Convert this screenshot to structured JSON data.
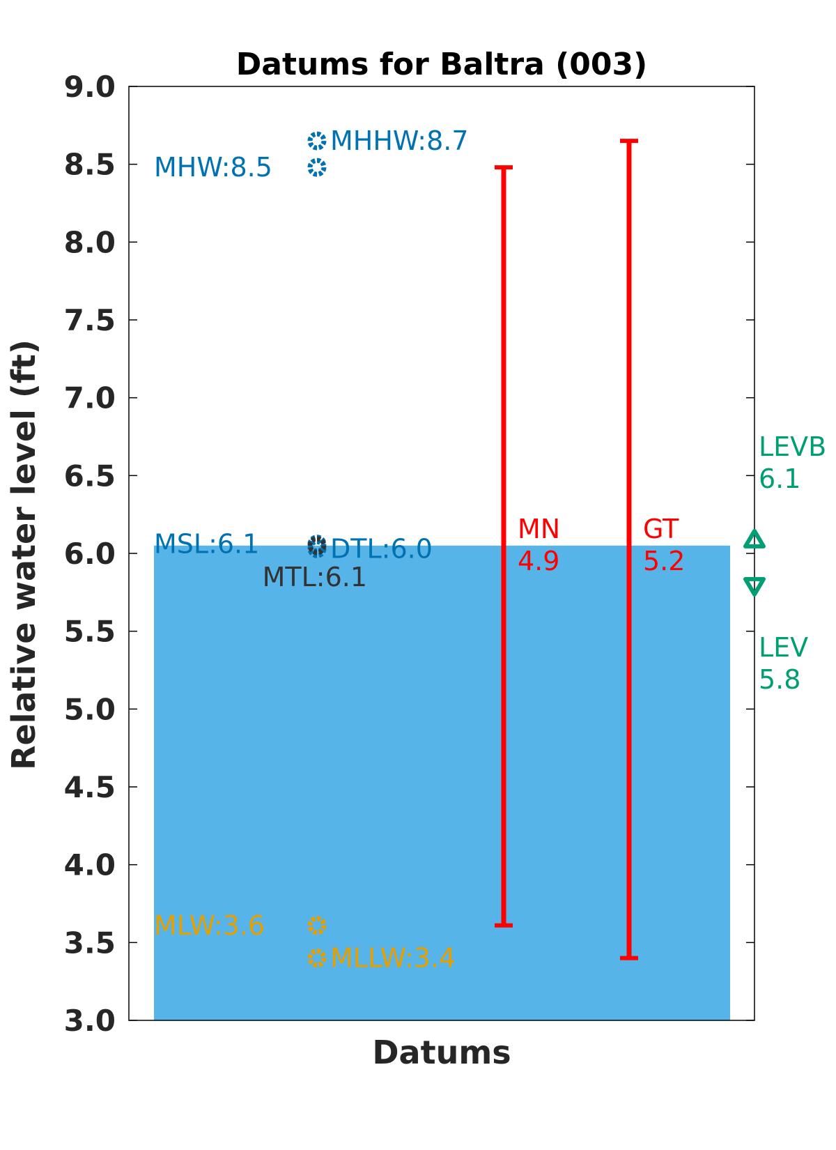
{
  "chart_data": {
    "type": "scatter",
    "title": "Datums for Baltra (003)",
    "xlabel": "Datums",
    "ylabel": "Relative water level (ft)",
    "ylim": [
      3.0,
      9.0
    ],
    "yticks": [
      "3.0",
      "3.5",
      "4.0",
      "4.5",
      "5.0",
      "5.5",
      "6.0",
      "6.5",
      "7.0",
      "7.5",
      "8.0",
      "8.5",
      "9.0"
    ],
    "background_bar": {
      "value": 6.05,
      "color": "#56b4e9"
    },
    "datums": [
      {
        "name": "MHHW",
        "value": 8.65,
        "text": "MHHW:8.7",
        "color": "#0072b2",
        "label_side": "right"
      },
      {
        "name": "MHW",
        "value": 8.48,
        "text": "MHW:8.5",
        "color": "#0072b2",
        "label_side": "left"
      },
      {
        "name": "MSL",
        "value": 6.06,
        "text": "MSL:6.1",
        "color": "#0072b2",
        "label_side": "left"
      },
      {
        "name": "DTL",
        "value": 6.03,
        "text": "DTL:6.0",
        "color": "#0072b2",
        "label_side": "right"
      },
      {
        "name": "MTL",
        "value": 6.05,
        "text": "MTL:6.1",
        "color": "#333333",
        "label_side": "below-left"
      },
      {
        "name": "MLW",
        "value": 3.61,
        "text": "MLW:3.6",
        "color": "#e69f00",
        "label_side": "left"
      },
      {
        "name": "MLLW",
        "value": 3.4,
        "text": "MLLW:3.4",
        "color": "#e69f00",
        "label_side": "right"
      }
    ],
    "ranges": [
      {
        "name": "MN",
        "value_text": "4.9",
        "low": 3.61,
        "high": 8.48,
        "color": "#ff0000"
      },
      {
        "name": "GT",
        "value_text": "5.2",
        "low": 3.4,
        "high": 8.65,
        "color": "#ff0000"
      }
    ],
    "extremes": [
      {
        "name": "LEVB",
        "value": 6.09,
        "value_text": "6.1",
        "marker": "triangle-up",
        "color": "#009e73"
      },
      {
        "name": "LEV",
        "value": 5.79,
        "value_text": "5.8",
        "marker": "triangle-down",
        "color": "#009e73"
      }
    ]
  }
}
